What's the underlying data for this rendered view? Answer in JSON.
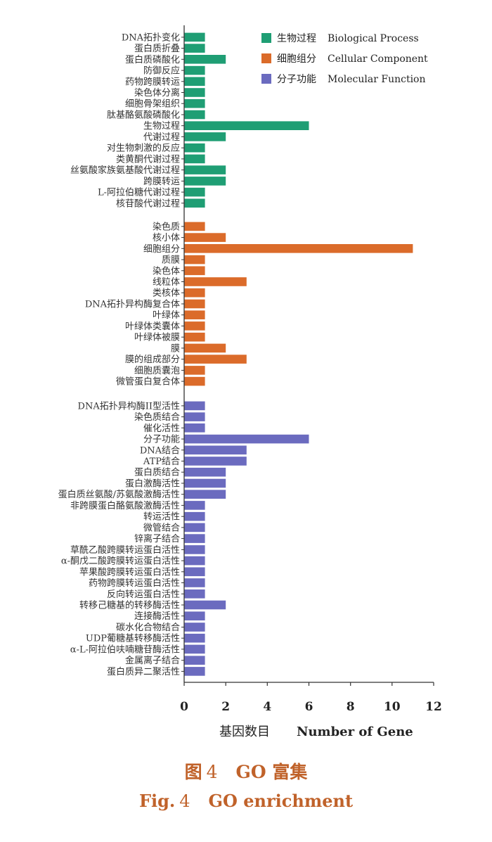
{
  "chart_data": {
    "type": "bar",
    "orientation": "horizontal",
    "xlabel": "基因数目",
    "xlabel_en": "Number of Gene",
    "xlim": [
      0,
      12
    ],
    "xticks": [
      0,
      2,
      4,
      6,
      8,
      10,
      12
    ],
    "grid": false,
    "legend_position": "top-right",
    "series": [
      {
        "name": "生物过程",
        "name_en": "Biological Process",
        "color": "#1f9e74",
        "categories": [
          "DNA拓扑变化",
          "蛋白质折叠",
          "蛋白质磷酸化",
          "防御反应",
          "药物跨膜转运",
          "染色体分离",
          "细胞骨架组织",
          "肽基酪氨酸磷酸化",
          "生物过程",
          "代谢过程",
          "对生物刺激的反应",
          "类黄酮代谢过程",
          "丝氨酸家族氨基酸代谢过程",
          "跨膜转运",
          "L-阿拉伯糖代谢过程",
          "核苷酸代谢过程"
        ],
        "values": [
          1,
          1,
          2,
          1,
          1,
          1,
          1,
          1,
          6,
          2,
          1,
          1,
          2,
          2,
          1,
          1
        ]
      },
      {
        "name": "细胞组分",
        "name_en": "Cellular Component",
        "color": "#db6b2a",
        "categories": [
          "染色质",
          "核小体",
          "细胞组分",
          "质膜",
          "染色体",
          "线粒体",
          "类核体",
          "DNA拓扑异构酶复合体",
          "叶绿体",
          "叶绿体类囊体",
          "叶绿体被膜",
          "膜",
          "膜的组成部分",
          "细胞质囊泡",
          "微管蛋白复合体"
        ],
        "values": [
          1,
          2,
          11,
          1,
          1,
          3,
          1,
          1,
          1,
          1,
          1,
          2,
          3,
          1,
          1
        ]
      },
      {
        "name": "分子功能",
        "name_en": "Molecular Function",
        "color": "#6b6bbf",
        "categories": [
          "DNA拓扑异构酶II型活性",
          "染色质结合",
          "催化活性",
          "分子功能",
          "DNA结合",
          "ATP结合",
          "蛋白质结合",
          "蛋白激酶活性",
          "蛋白质丝氨酸/苏氨酸激酶活性",
          "非跨膜蛋白酪氨酸激酶活性",
          "转运活性",
          "微管结合",
          "锌离子结合",
          "草酰乙酸跨膜转运蛋白活性",
          "α-酮戊二酸跨膜转运蛋白活性",
          "苹果酸跨膜转运蛋白活性",
          "药物跨膜转运蛋白活性",
          "反向转运蛋白活性",
          "转移己糖基的转移酶活性",
          "连接酶活性",
          "碳水化合物结合",
          "UDP葡糖基转移酶活性",
          "α-L-阿拉伯呋喃糖苷酶活性",
          "金属离子结合",
          "蛋白质异二聚活性"
        ],
        "values": [
          1,
          1,
          1,
          6,
          3,
          3,
          2,
          2,
          2,
          1,
          1,
          1,
          1,
          1,
          1,
          1,
          1,
          1,
          2,
          1,
          1,
          1,
          1,
          1,
          1
        ]
      }
    ]
  },
  "caption": {
    "zh_prefix": "图",
    "zh_num": "4",
    "zh_text": "GO 富集",
    "en_prefix": "Fig.",
    "en_num": "4",
    "en_text": "GO enrichment"
  }
}
